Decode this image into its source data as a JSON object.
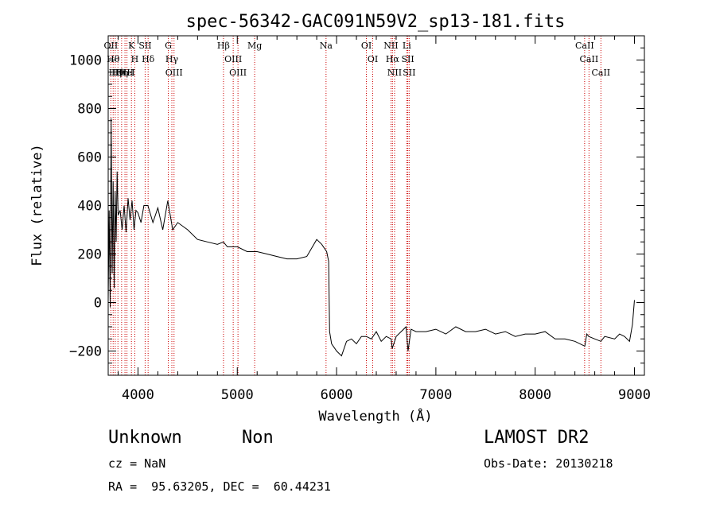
{
  "chart_data": {
    "type": "line",
    "title": "spec-56342-GAC091N59V2_sp13-181.fits",
    "xlabel": "Wavelength (Å)",
    "ylabel": "Flux (relative)",
    "xlim": [
      3700,
      9100
    ],
    "ylim": [
      -300,
      1100
    ],
    "xticks": [
      "4000",
      "5000",
      "6000",
      "7000",
      "8000",
      "9000"
    ],
    "yticks": [
      "−200",
      "0",
      "200",
      "400",
      "600",
      "800",
      "1000"
    ],
    "grid": false,
    "series": [
      {
        "x": [
          3700,
          3710,
          3720,
          3730,
          3740,
          3750,
          3760,
          3770,
          3780,
          3790,
          3800,
          3820,
          3840,
          3860,
          3880,
          3900,
          3920,
          3940,
          3960,
          3980,
          4000,
          4030,
          4060,
          4100,
          4150,
          4200,
          4250,
          4300,
          4350,
          4400,
          4500,
          4600,
          4700,
          4800,
          4860,
          4900,
          5000,
          5100,
          5200,
          5300,
          5400,
          5500,
          5600,
          5700,
          5800,
          5850,
          5900,
          5920,
          5930,
          5950,
          6000,
          6050,
          6100,
          6150,
          6200,
          6250,
          6300,
          6350,
          6400,
          6450,
          6500,
          6550,
          6560,
          6600,
          6650,
          6700,
          6720,
          6750,
          6800,
          6900,
          7000,
          7100,
          7200,
          7300,
          7400,
          7500,
          7600,
          7700,
          7800,
          7900,
          8000,
          8100,
          8200,
          8300,
          8400,
          8500,
          8520,
          8540,
          8600,
          8662,
          8700,
          8800,
          8850,
          8900,
          8950,
          8980,
          9000
        ],
        "y": [
          10,
          380,
          -20,
          760,
          120,
          500,
          60,
          460,
          250,
          540,
          360,
          380,
          300,
          400,
          290,
          430,
          340,
          420,
          300,
          380,
          370,
          330,
          400,
          400,
          330,
          390,
          300,
          420,
          300,
          330,
          300,
          260,
          250,
          240,
          250,
          230,
          230,
          210,
          210,
          200,
          190,
          180,
          180,
          190,
          260,
          240,
          210,
          170,
          -120,
          -170,
          -200,
          -220,
          -160,
          -150,
          -170,
          -140,
          -140,
          -150,
          -120,
          -160,
          -140,
          -150,
          -190,
          -140,
          -120,
          -100,
          -200,
          -110,
          -120,
          -120,
          -110,
          -130,
          -100,
          -120,
          -120,
          -110,
          -130,
          -120,
          -140,
          -130,
          -130,
          -120,
          -150,
          -150,
          -160,
          -180,
          -130,
          -140,
          -150,
          -160,
          -140,
          -150,
          -130,
          -140,
          -160,
          -90,
          10
        ]
      }
    ],
    "lines": [
      {
        "x": 3727,
        "label": "OII"
      },
      {
        "x": 3750,
        "label": "Hθ"
      },
      {
        "x": 3771,
        "label": "Hη"
      },
      {
        "x": 3798,
        "label": "Hθ"
      },
      {
        "x": 3835,
        "label": "Hη"
      },
      {
        "x": 3869,
        "label": "OIII"
      },
      {
        "x": 3889,
        "label": "HeI"
      },
      {
        "x": 3934,
        "label": "K"
      },
      {
        "x": 3968,
        "label": "H"
      },
      {
        "x": 4072,
        "label": "SII"
      },
      {
        "x": 4102,
        "label": "Hδ"
      },
      {
        "x": 4305,
        "label": "G"
      },
      {
        "x": 4341,
        "label": "Hγ"
      },
      {
        "x": 4363,
        "label": "OIII"
      },
      {
        "x": 4861,
        "label": "Hβ"
      },
      {
        "x": 4959,
        "label": "OIII"
      },
      {
        "x": 5007,
        "label": "OIII"
      },
      {
        "x": 5175,
        "label": "Mg"
      },
      {
        "x": 5894,
        "label": "Na"
      },
      {
        "x": 6300,
        "label": "OI"
      },
      {
        "x": 6364,
        "label": "OI"
      },
      {
        "x": 6548,
        "label": "NII"
      },
      {
        "x": 6563,
        "label": "Hα"
      },
      {
        "x": 6584,
        "label": "NII"
      },
      {
        "x": 6707,
        "label": "Li"
      },
      {
        "x": 6717,
        "label": "SII"
      },
      {
        "x": 6731,
        "label": "SII"
      },
      {
        "x": 8498,
        "label": "CaII"
      },
      {
        "x": 8542,
        "label": "CaII"
      },
      {
        "x": 8662,
        "label": "CaII"
      }
    ]
  },
  "info": {
    "class": "Unknown",
    "subclass": "Non",
    "survey": "LAMOST DR2",
    "cz": "cz = NaN",
    "obs_date": "Obs-Date: 20130218",
    "coords": "RA =  95.63205, DEC =  60.44231"
  }
}
